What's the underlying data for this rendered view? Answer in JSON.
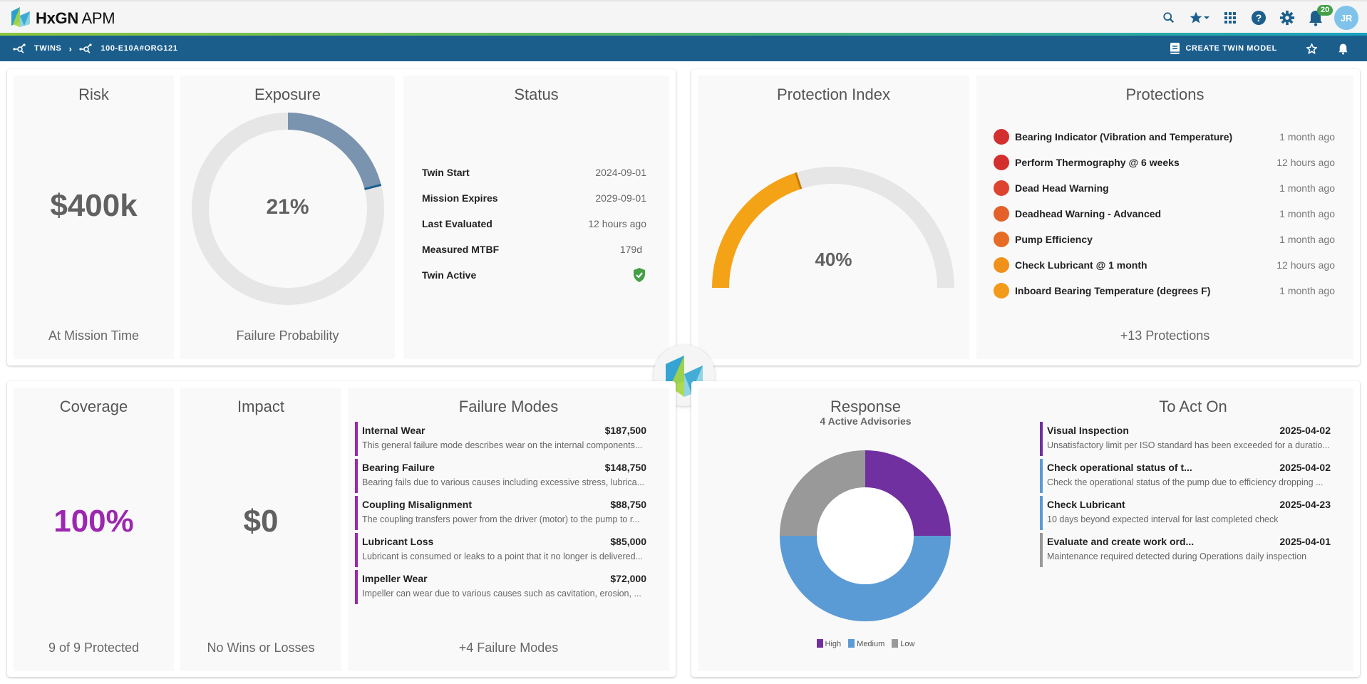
{
  "app": {
    "brand_bold": "HxGN",
    "brand_rest": " APM",
    "notification_count": "20",
    "user_initials": "JR"
  },
  "nav": {
    "breadcrumbs": [
      {
        "label": "TWINS"
      },
      {
        "label": "100-E10A#ORG121"
      }
    ],
    "create_label": "CREATE TWIN MODEL"
  },
  "risk": {
    "title": "Risk",
    "value": "$400k",
    "footer": "At Mission Time"
  },
  "exposure": {
    "title": "Exposure",
    "value": "21%",
    "percent": 21,
    "footer": "Failure Probability",
    "color": "#7a93ae"
  },
  "status": {
    "title": "Status",
    "rows": [
      {
        "label": "Twin Start",
        "value": "2024-09-01"
      },
      {
        "label": "Mission Expires",
        "value": "2029-09-01"
      },
      {
        "label": "Last Evaluated",
        "value": "12 hours ago"
      },
      {
        "label": "Measured MTBF",
        "value": "179d"
      },
      {
        "label": "Twin Active",
        "value": ""
      }
    ]
  },
  "protection_index": {
    "title": "Protection Index",
    "value": "40%",
    "percent": 40,
    "color": "#f5a316"
  },
  "protections": {
    "title": "Protections",
    "items": [
      {
        "name": "Bearing Indicator (Vibration and Temperature)",
        "time": "1 month ago",
        "color": "#d32f2f"
      },
      {
        "name": "Perform Thermography @ 6 weeks",
        "time": "12 hours ago",
        "color": "#d32f2f"
      },
      {
        "name": "Dead Head Warning",
        "time": "1 month ago",
        "color": "#dc4430"
      },
      {
        "name": "Deadhead Warning - Advanced",
        "time": "1 month ago",
        "color": "#e4612a"
      },
      {
        "name": "Pump Efficiency",
        "time": "1 month ago",
        "color": "#e66c26"
      },
      {
        "name": "Check Lubricant @ 1 month",
        "time": "12 hours ago",
        "color": "#f0921a"
      },
      {
        "name": "Inboard Bearing Temperature (degrees F)",
        "time": "1 month ago",
        "color": "#f39a1b"
      }
    ],
    "more": "+13 Protections"
  },
  "coverage": {
    "title": "Coverage",
    "value": "100%",
    "footer": "9 of 9 Protected",
    "color": "#9c27b0"
  },
  "impact": {
    "title": "Impact",
    "value": "$0",
    "footer": "No Wins or Losses"
  },
  "failure_modes": {
    "title": "Failure Modes",
    "items": [
      {
        "name": "Internal Wear",
        "cost": "$187,500",
        "desc": "This general failure mode describes wear on the internal components..."
      },
      {
        "name": "Bearing Failure",
        "cost": "$148,750",
        "desc": "Bearing fails due to various causes including excessive stress, lubrica..."
      },
      {
        "name": "Coupling Misalignment",
        "cost": "$88,750",
        "desc": "The coupling transfers power from the driver (motor) to the pump to r..."
      },
      {
        "name": "Lubricant Loss",
        "cost": "$85,000",
        "desc": "Lubricant is consumed or leaks to a point that it no longer is delivered..."
      },
      {
        "name": "Impeller Wear",
        "cost": "$72,000",
        "desc": "Impeller can wear due to various causes such as cavitation, erosion, ..."
      }
    ],
    "more": "+4 Failure Modes"
  },
  "response": {
    "title": "Response",
    "subtitle": "4 Active Advisories",
    "legend": [
      {
        "label": "High",
        "value": 1,
        "color": "#7030a0"
      },
      {
        "label": "Medium",
        "value": 2,
        "color": "#5b9bd5"
      },
      {
        "label": "Low",
        "value": 1,
        "color": "#999999"
      }
    ]
  },
  "to_act_on": {
    "title": "To Act On",
    "items": [
      {
        "name": "Visual Inspection",
        "date": "2025-04-02",
        "desc": "Unsatisfactory limit per ISO standard has been exceeded for a duratio...",
        "color": "#7030a0"
      },
      {
        "name": "Check operational status of t...",
        "date": "2025-04-02",
        "desc": "Check the operational status of the pump due to efficiency dropping ...",
        "color": "#5b9bd5"
      },
      {
        "name": "Check Lubricant",
        "date": "2025-04-23",
        "desc": "10 days beyond expected interval for last completed check",
        "color": "#5b9bd5"
      },
      {
        "name": "Evaluate and create work ord...",
        "date": "2025-04-01",
        "desc": "Maintenance required detected during Operations daily inspection",
        "color": "#999999"
      }
    ]
  }
}
